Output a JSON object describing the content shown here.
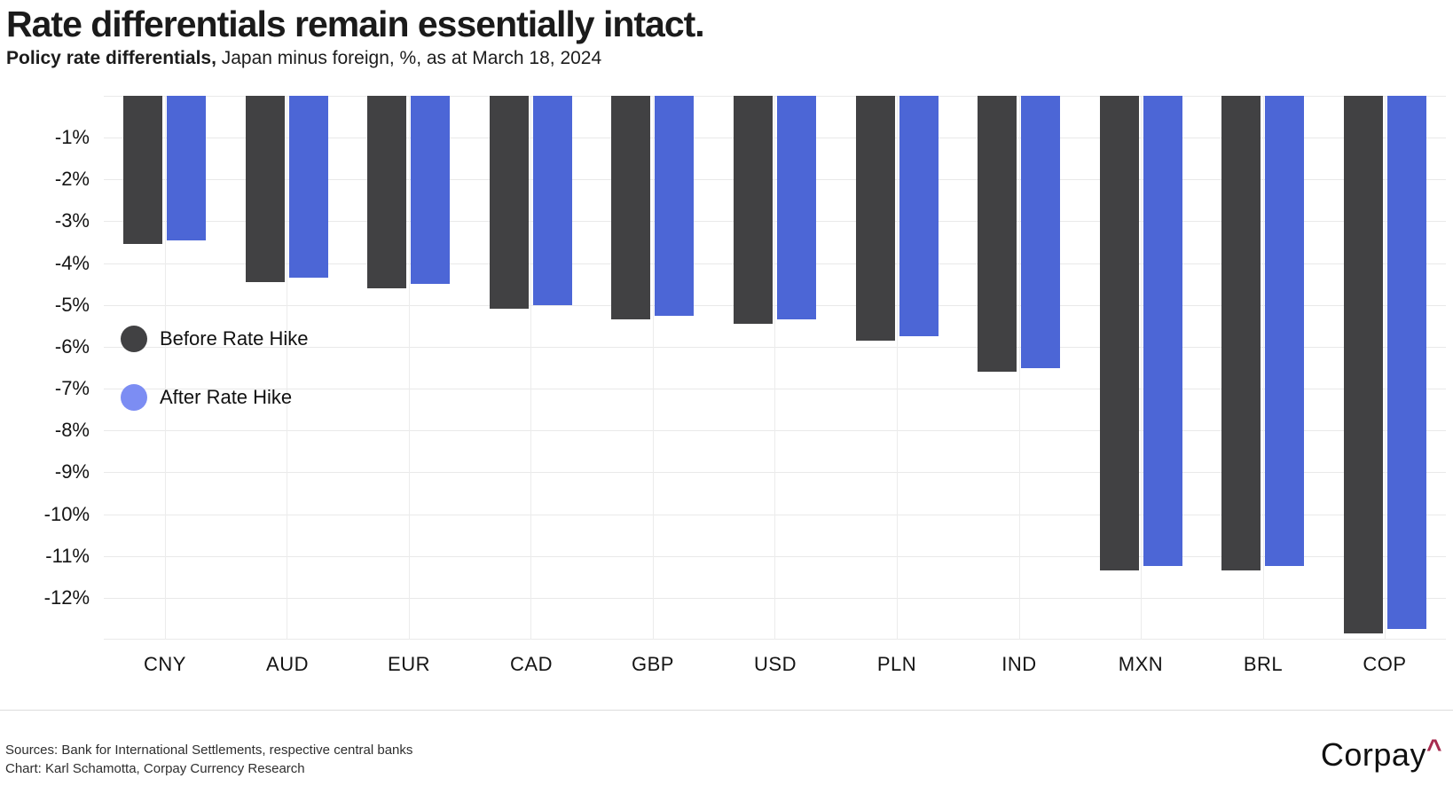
{
  "header": {
    "title": "Rate differentials remain essentially intact.",
    "subtitle_bold": "Policy rate differentials,",
    "subtitle_rest": " Japan minus foreign, %, as at March 18, 2024"
  },
  "chart_data": {
    "type": "bar",
    "categories": [
      "CNY",
      "AUD",
      "EUR",
      "CAD",
      "GBP",
      "USD",
      "PLN",
      "IND",
      "MXN",
      "BRL",
      "COP"
    ],
    "series": [
      {
        "name": "Before Rate Hike",
        "color": "#414143",
        "values": [
          -3.55,
          -4.45,
          -4.6,
          -5.1,
          -5.35,
          -5.45,
          -5.85,
          -6.6,
          -11.35,
          -11.35,
          -12.85
        ]
      },
      {
        "name": "After Rate Hike",
        "color": "#4c66d6",
        "values": [
          -3.45,
          -4.35,
          -4.5,
          -5.0,
          -5.25,
          -5.35,
          -5.75,
          -6.5,
          -11.25,
          -11.25,
          -12.75
        ]
      }
    ],
    "title": "Rate differentials remain essentially intact.",
    "subtitle": "Policy rate differentials, Japan minus foreign, %, as at March 18, 2024",
    "xlabel": "",
    "ylabel": "",
    "ylim": [
      -13.0,
      0
    ],
    "y_ticks": [
      "-1%",
      "-2%",
      "-3%",
      "-4%",
      "-5%",
      "-6%",
      "-7%",
      "-8%",
      "-9%",
      "-10%",
      "-11%",
      "-12%"
    ],
    "grid": true,
    "legend_position": "inside-left"
  },
  "legend": {
    "items": [
      {
        "label": "Before Rate Hike",
        "color": "#414143"
      },
      {
        "label": "After Rate Hike",
        "color": "#7c8df3"
      }
    ]
  },
  "footer": {
    "sources": "Sources: Bank for International Settlements, respective central banks",
    "credit": "Chart: Karl Schamotta, Corpay Currency Research",
    "brand": "Corpay",
    "brand_mark": "^",
    "brand_mark_color": "#a72c50"
  }
}
